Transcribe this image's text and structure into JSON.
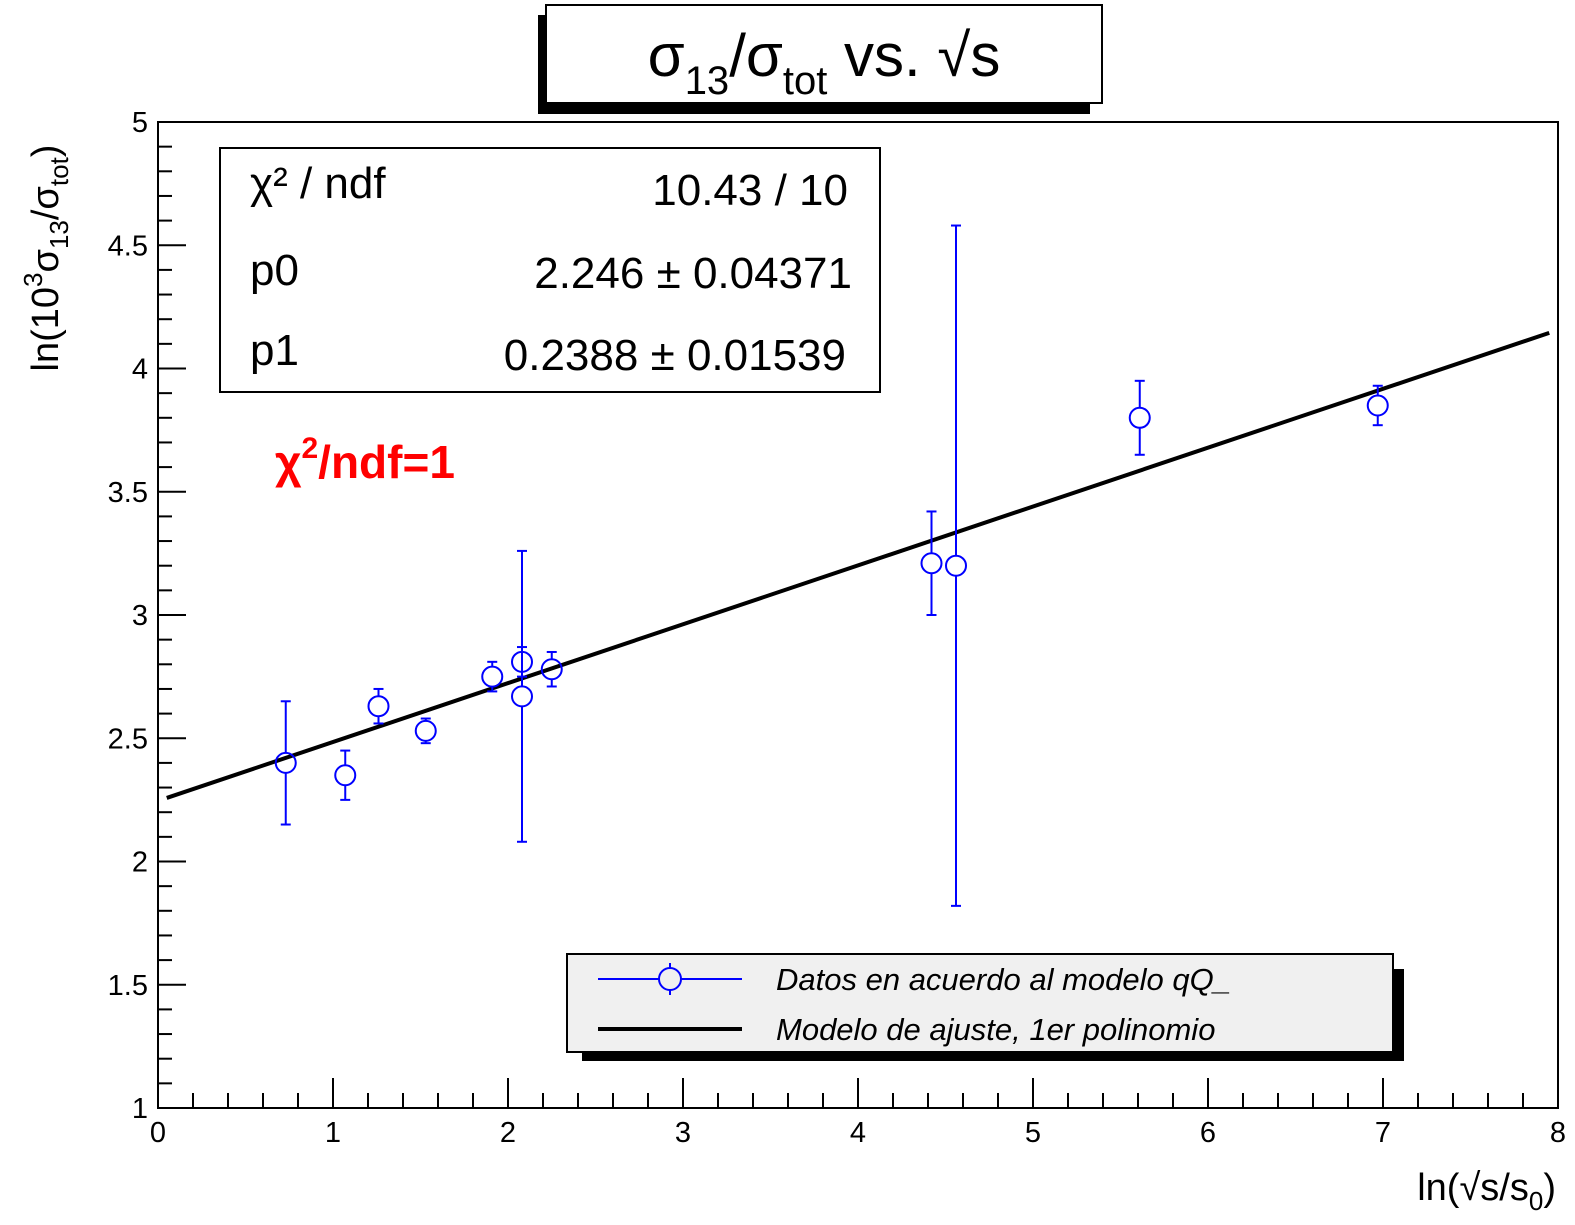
{
  "chart_data": {
    "type": "scatter",
    "title": {
      "main": "σ",
      "sub1": "13",
      "mid": "/σ",
      "sub2": "tot",
      "tail": " vs. √s"
    },
    "xlabel": {
      "pre": "ln(√s/s",
      "sub": "0",
      "post": ")"
    },
    "ylabel": {
      "pre": "ln(10",
      "sup": "3",
      "mid1": "σ",
      "sub1": "13",
      "mid2": "/σ",
      "sub2": "tot",
      "post": ")"
    },
    "xlim": [
      0,
      8
    ],
    "ylim": [
      1,
      5
    ],
    "x_ticks": [
      "0",
      "1",
      "2",
      "3",
      "4",
      "5",
      "6",
      "7",
      "8"
    ],
    "y_ticks": [
      "1",
      "1.5",
      "2",
      "2.5",
      "3",
      "3.5",
      "4",
      "4.5",
      "5"
    ],
    "series": [
      {
        "name": "Datos en acuerdo al modelo qQ_",
        "type": "scatter",
        "marker": "open-circle",
        "color": "#0000ff",
        "points": [
          {
            "x": 0.73,
            "y": 2.4,
            "err": 0.25
          },
          {
            "x": 1.07,
            "y": 2.35,
            "err": 0.1
          },
          {
            "x": 1.26,
            "y": 2.63,
            "err": 0.07
          },
          {
            "x": 1.53,
            "y": 2.53,
            "err": 0.05
          },
          {
            "x": 1.91,
            "y": 2.75,
            "err": 0.06
          },
          {
            "x": 2.08,
            "y": 2.81,
            "err": 0.06
          },
          {
            "x": 2.08,
            "y": 2.67,
            "err": 0.59
          },
          {
            "x": 2.25,
            "y": 2.78,
            "err": 0.07
          },
          {
            "x": 4.42,
            "y": 3.21,
            "err": 0.21
          },
          {
            "x": 4.56,
            "y": 3.2,
            "err": 1.38
          },
          {
            "x": 5.61,
            "y": 3.8,
            "err": 0.15
          },
          {
            "x": 6.97,
            "y": 3.85,
            "err": 0.08
          }
        ]
      },
      {
        "name": "Modelo de ajuste, 1er polinomio",
        "type": "line",
        "color": "#000000",
        "x_range": [
          0.05,
          7.95
        ],
        "intercept": 2.246,
        "slope": 0.2388
      }
    ],
    "stats": [
      {
        "label": "χ² / ndf",
        "value": "10.43 / 10"
      },
      {
        "label": "p0",
        "value": "2.246 ± 0.04371"
      },
      {
        "label": "p1",
        "value": "0.2388 ± 0.01539"
      }
    ],
    "annotation": {
      "pre": "χ",
      "sup": "2",
      "post": "/ndf=1",
      "color": "#ff0000"
    },
    "legend_placement": "bottom-right",
    "grid": false
  }
}
